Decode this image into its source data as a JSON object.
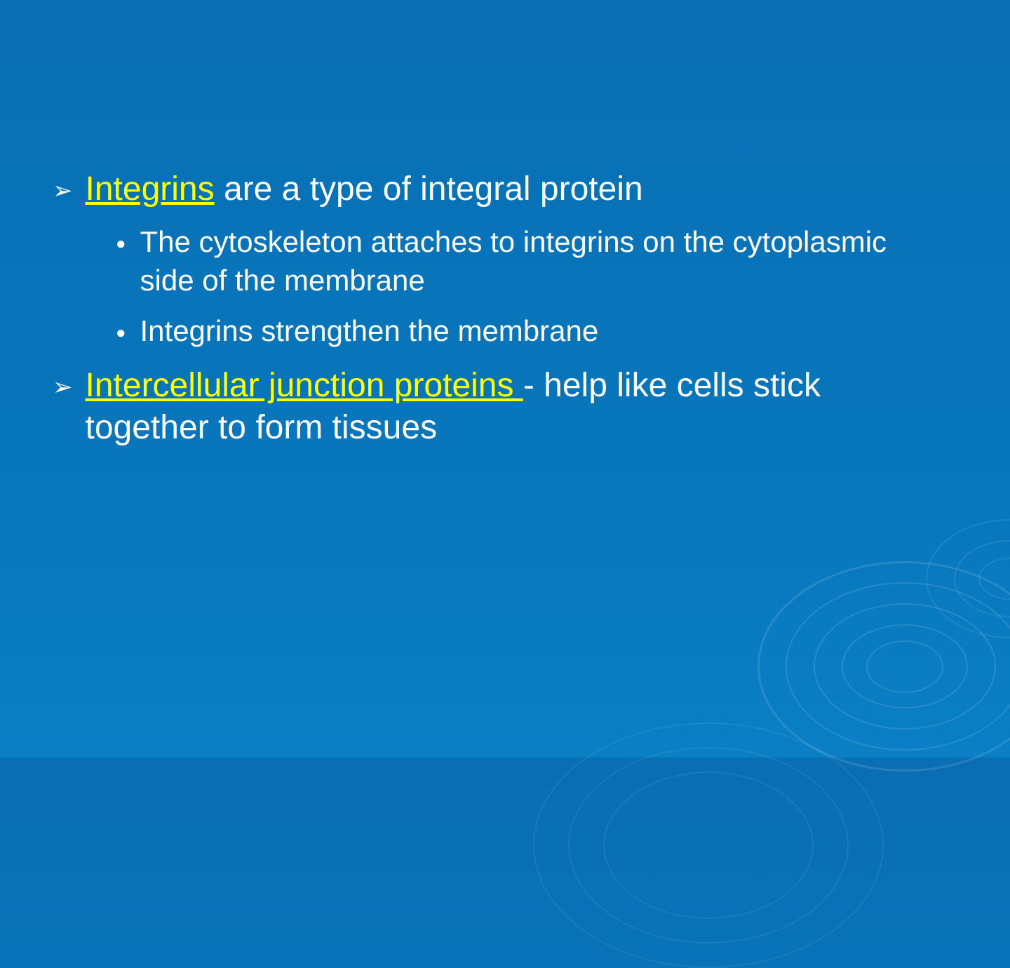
{
  "slide": {
    "background_gradient_top": "#0a6eb4",
    "background_gradient_bottom": "#0a7fc4",
    "text_color": "#ffffff",
    "highlight_color": "#ffff00",
    "main_fontsize": 48,
    "sub_fontsize": 42,
    "items": [
      {
        "highlight": "Integrins",
        "rest": " are a type of integral protein",
        "subs": [
          "The cytoskeleton attaches to integrins on the cytoplasmic side of the membrane",
          "Integrins strengthen the membrane"
        ]
      },
      {
        "highlight": "Intercellular junction proteins ",
        "rest": "- help like cells stick together to form tissues",
        "subs": []
      }
    ]
  },
  "bullets": {
    "main": "➢",
    "sub": "●"
  }
}
